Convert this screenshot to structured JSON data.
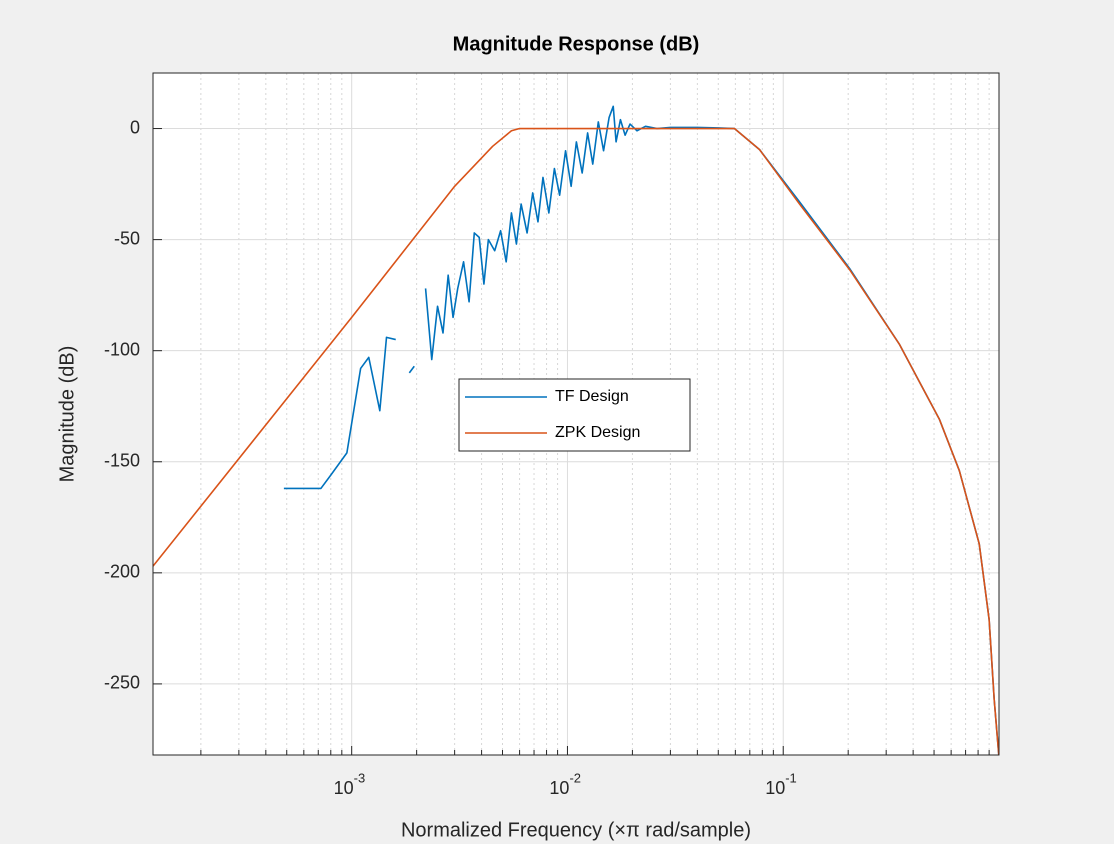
{
  "chart_data": {
    "type": "line",
    "title": "Magnitude Response (dB)",
    "x_label": "Normalized Frequency (×π rad/sample)",
    "y_label": "Magnitude (dB)",
    "log_x": true,
    "grid": true,
    "minor_grid": true,
    "legend": "center",
    "xlim": [
      0.00012,
      1
    ],
    "ylim": [
      -282,
      25
    ],
    "xticks": [
      {
        "value": 0.001,
        "label": "10",
        "exponent": "-3"
      },
      {
        "value": 0.01,
        "label": "10",
        "exponent": "-2"
      },
      {
        "value": 0.1,
        "label": "10",
        "exponent": "-1"
      }
    ],
    "xminorticks": [
      0.0002,
      0.0003,
      0.0004,
      0.0005,
      0.0006,
      0.0007,
      0.0008,
      0.0009,
      0.002,
      0.003,
      0.004,
      0.005,
      0.006,
      0.007,
      0.008,
      0.009,
      0.02,
      0.03,
      0.04,
      0.05,
      0.06,
      0.07,
      0.08,
      0.09,
      0.2,
      0.3,
      0.4,
      0.5,
      0.6,
      0.7,
      0.8,
      0.9
    ],
    "yticks": [
      0,
      -50,
      -100,
      -150,
      -200,
      -250
    ],
    "series": [
      {
        "name": "TF Design",
        "color": "#0072bd",
        "x": [
          0.000485,
          0.00072,
          0.0008,
          0.00095,
          0.0011,
          0.0012,
          0.00135,
          0.00145,
          0.0016,
          0.0017,
          0.00185,
          0.00195,
          0.0021,
          0.0022,
          0.00235,
          0.0025,
          0.00265,
          0.0028,
          0.00295,
          0.0031,
          0.0033,
          0.0035,
          0.0037,
          0.0039,
          0.0041,
          0.0043,
          0.0046,
          0.0049,
          0.0052,
          0.0055,
          0.0058,
          0.0061,
          0.0065,
          0.0069,
          0.0073,
          0.0077,
          0.0082,
          0.0087,
          0.0092,
          0.0098,
          0.0104,
          0.011,
          0.0117,
          0.0124,
          0.0131,
          0.0139,
          0.0147,
          0.0156,
          0.0163,
          0.0168,
          0.0176,
          0.0185,
          0.0195,
          0.021,
          0.023,
          0.026,
          0.03,
          0.04,
          0.05,
          0.0594,
          0.0777,
          0.119,
          0.203,
          0.345,
          0.53,
          0.655,
          0.81,
          0.9,
          0.95,
          0.998
        ],
        "values": [
          -162,
          -162,
          -156,
          -146,
          -108,
          -103,
          -127,
          -94,
          -95,
          null,
          -110,
          -107,
          null,
          -72,
          -104,
          -80,
          -92,
          -66,
          -85,
          -72,
          -60,
          -78,
          -47,
          -49,
          -70,
          -50,
          -55,
          -46,
          -60,
          -38,
          -52,
          -34,
          -47,
          -29,
          -42,
          -22,
          -38,
          -18,
          -30,
          -10,
          -26,
          -6,
          -20,
          -2,
          -16,
          3,
          -10,
          5,
          10,
          -6,
          4,
          -3,
          2,
          -1,
          1,
          0,
          0.5,
          0.5,
          0.3,
          0,
          -9.5,
          -33,
          -63,
          -97,
          -131,
          -154,
          -187,
          -221,
          -257,
          -282
        ]
      },
      {
        "name": "ZPK Design",
        "color": "#d95319",
        "x": [
          0.00012,
          0.001,
          0.003,
          0.0045,
          0.0055,
          0.006,
          0.05,
          0.0594,
          0.0777,
          0.119,
          0.203,
          0.345,
          0.53,
          0.655,
          0.81,
          0.9,
          0.95,
          0.998
        ],
        "values": [
          -197,
          -85,
          -26,
          -8,
          -1,
          0,
          0,
          0,
          -9.5,
          -34,
          -63.5,
          -97,
          -131,
          -154,
          -187,
          -221,
          -257,
          -282
        ]
      }
    ]
  }
}
